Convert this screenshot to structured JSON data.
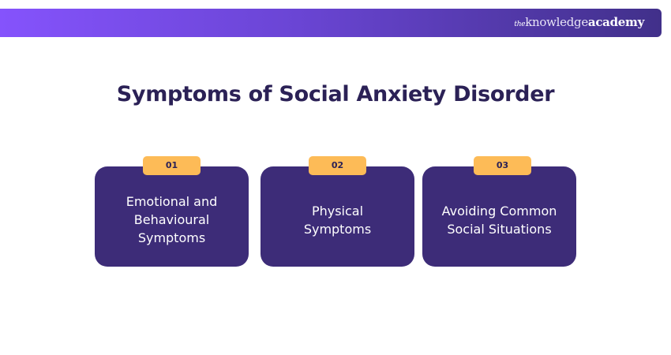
{
  "brand": {
    "the": "the",
    "knowledge": "knowledge",
    "academy": "academy",
    "gradient": [
      "#8553fc",
      "#41308a"
    ]
  },
  "title": "Symptoms of Social Anxiety Disorder",
  "colors": {
    "card": "#3d2c78",
    "badge": "#fdbb57",
    "title": "#2b2156"
  },
  "items": [
    {
      "number": "01",
      "label": "Emotional and Behavioural Symptoms"
    },
    {
      "number": "02",
      "label": "Physical Symptoms"
    },
    {
      "number": "03",
      "label": "Avoiding Common Social Situations"
    }
  ]
}
